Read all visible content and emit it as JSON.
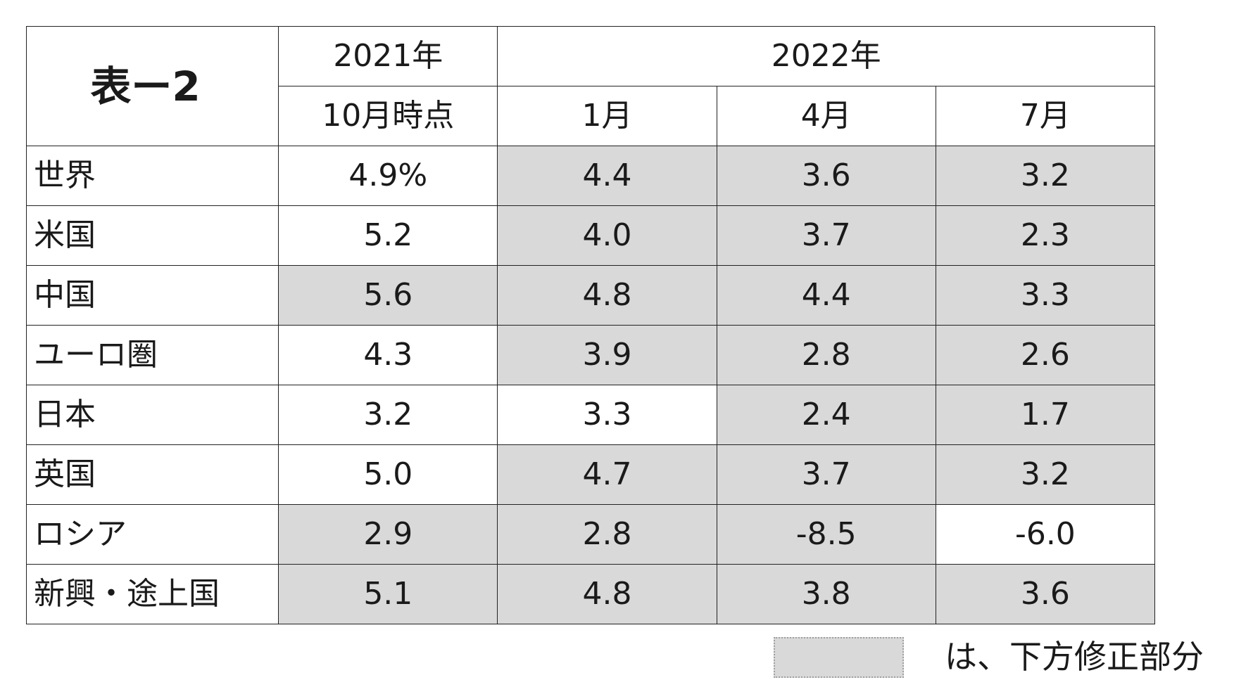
{
  "table": {
    "title": "表ー2",
    "year_2021": "2021年",
    "year_2022": "2022年",
    "sub_2021": "10月時点",
    "sub_jan": "1月",
    "sub_apr": "4月",
    "sub_jul": "7月",
    "rows": [
      {
        "name": "世界",
        "v": [
          "4.9%",
          "4.4",
          "3.6",
          "3.2"
        ],
        "shaded": [
          false,
          true,
          true,
          true
        ]
      },
      {
        "name": "米国",
        "v": [
          "5.2",
          "4.0",
          "3.7",
          "2.3"
        ],
        "shaded": [
          false,
          true,
          true,
          true
        ]
      },
      {
        "name": "中国",
        "v": [
          "5.6",
          "4.8",
          "4.4",
          "3.3"
        ],
        "shaded": [
          true,
          true,
          true,
          true
        ]
      },
      {
        "name": "ユーロ圏",
        "v": [
          "4.3",
          "3.9",
          "2.8",
          "2.6"
        ],
        "shaded": [
          false,
          true,
          true,
          true
        ]
      },
      {
        "name": "日本",
        "v": [
          "3.2",
          "3.3",
          "2.4",
          "1.7"
        ],
        "shaded": [
          false,
          false,
          true,
          true
        ]
      },
      {
        "name": "英国",
        "v": [
          "5.0",
          "4.7",
          "3.7",
          "3.2"
        ],
        "shaded": [
          false,
          true,
          true,
          true
        ]
      },
      {
        "name": "ロシア",
        "v": [
          "2.9",
          "2.8",
          "-8.5",
          "-6.0"
        ],
        "shaded": [
          true,
          true,
          true,
          false
        ]
      },
      {
        "name": "新興・途上国",
        "v": [
          "5.1",
          "4.8",
          "3.8",
          "3.6"
        ],
        "shaded": [
          true,
          true,
          true,
          true
        ]
      }
    ]
  },
  "legend": {
    "text": "は、下方修正部分",
    "swatch_color": "#d9d9d9"
  }
}
